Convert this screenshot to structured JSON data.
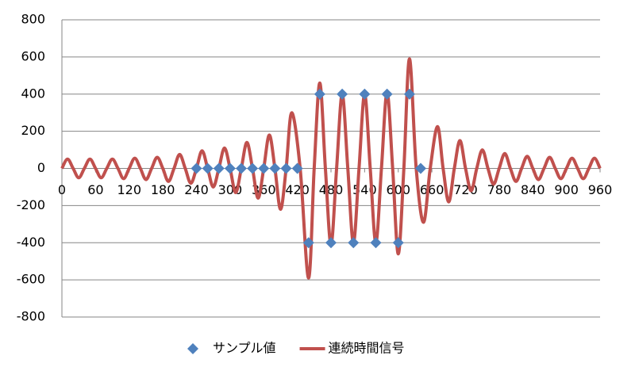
{
  "chart_data": {
    "type": "scatter",
    "xlim": [
      0,
      960
    ],
    "xticks": [
      0,
      60,
      120,
      180,
      240,
      300,
      360,
      420,
      480,
      540,
      600,
      660,
      720,
      780,
      840,
      900,
      960
    ],
    "ylim": [
      -800,
      800
    ],
    "yticks": [
      -800,
      -600,
      -400,
      -200,
      0,
      200,
      400,
      600,
      800
    ],
    "grid": true,
    "legend": "bottom",
    "series": [
      {
        "name": "サンプル値",
        "type": "scatter",
        "color": "#4f81bd",
        "x": [
          240,
          260,
          280,
          300,
          320,
          340,
          360,
          380,
          400,
          420,
          440,
          460,
          480,
          500,
          520,
          540,
          560,
          580,
          600,
          620,
          640
        ],
        "values": [
          0,
          0,
          0,
          0,
          0,
          0,
          0,
          0,
          0,
          0,
          -400,
          400,
          -400,
          400,
          -400,
          400,
          -400,
          400,
          -400,
          400,
          0
        ]
      },
      {
        "name": "連続時間信号",
        "type": "line",
        "color": "#c0504d",
        "x": [
          0,
          10,
          20,
          30,
          40,
          50,
          60,
          70,
          80,
          90,
          100,
          110,
          120,
          130,
          140,
          150,
          160,
          170,
          180,
          190,
          200,
          210,
          220,
          230,
          240,
          250,
          260,
          270,
          280,
          290,
          300,
          310,
          320,
          330,
          340,
          350,
          360,
          370,
          380,
          390,
          400,
          410,
          425,
          440,
          450,
          460,
          470,
          480,
          490,
          500,
          510,
          520,
          530,
          540,
          550,
          560,
          570,
          580,
          590,
          600,
          610,
          620,
          632,
          645,
          657,
          670,
          680,
          690,
          700,
          710,
          720,
          730,
          740,
          750,
          760,
          770,
          780,
          790,
          800,
          810,
          820,
          830,
          840,
          850,
          860,
          870,
          880,
          890,
          900,
          910,
          920,
          930,
          940,
          950,
          960
        ],
        "values": [
          0,
          50,
          0,
          -50,
          0,
          50,
          0,
          -50,
          0,
          50,
          0,
          -55,
          0,
          55,
          0,
          -60,
          0,
          60,
          0,
          -70,
          0,
          75,
          0,
          -80,
          0,
          95,
          0,
          -100,
          0,
          110,
          0,
          -130,
          0,
          140,
          0,
          -160,
          0,
          180,
          0,
          -220,
          0,
          300,
          0,
          -590,
          0,
          460,
          0,
          -410,
          0,
          400,
          0,
          -400,
          0,
          400,
          0,
          -400,
          0,
          410,
          0,
          -460,
          0,
          590,
          0,
          -290,
          0,
          225,
          0,
          -180,
          0,
          150,
          0,
          -120,
          0,
          100,
          0,
          -85,
          0,
          80,
          0,
          -70,
          0,
          65,
          0,
          -60,
          0,
          60,
          0,
          -55,
          0,
          55,
          0,
          -55,
          0,
          55,
          0
        ]
      }
    ]
  }
}
